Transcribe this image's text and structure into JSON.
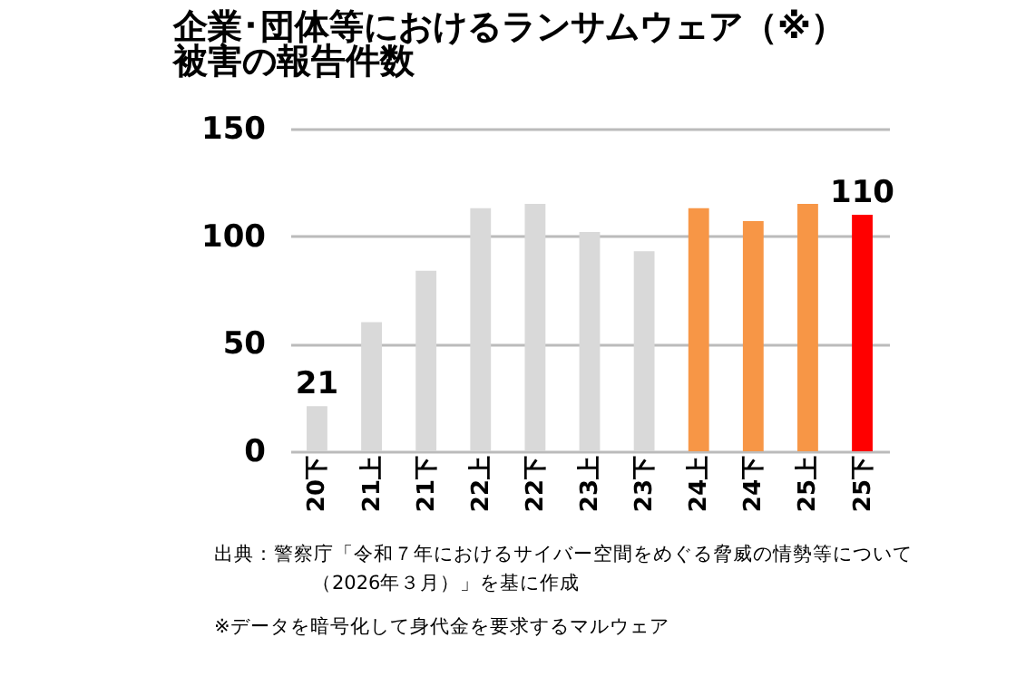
{
  "chart_data": {
    "type": "bar",
    "title": "企業･団体等におけるランサムウェア（※）",
    "subtitle": "被害の報告件数",
    "categories": [
      "20下",
      "21上",
      "21下",
      "22上",
      "22下",
      "23上",
      "23下",
      "24上",
      "24下",
      "25上",
      "25下"
    ],
    "values": [
      21,
      60,
      84,
      113,
      115,
      102,
      93,
      113,
      107,
      115,
      110
    ],
    "colors": [
      "#d9d9d9",
      "#d9d9d9",
      "#d9d9d9",
      "#d9d9d9",
      "#d9d9d9",
      "#d9d9d9",
      "#d9d9d9",
      "#f79646",
      "#f79646",
      "#f79646",
      "#ff0000"
    ],
    "value_labels": [
      "21",
      null,
      null,
      null,
      null,
      null,
      null,
      null,
      null,
      null,
      "110"
    ],
    "ylim": [
      0,
      150
    ],
    "yticks": [
      0,
      50,
      100,
      150
    ],
    "grid": "y",
    "annotations": [
      "出典：警察庁「令和７年におけるサイバー空間をめぐる脅威の情勢等について",
      "（2026年３月）」を基に作成",
      "※データを暗号化して身代金を要求するマルウェア"
    ]
  }
}
